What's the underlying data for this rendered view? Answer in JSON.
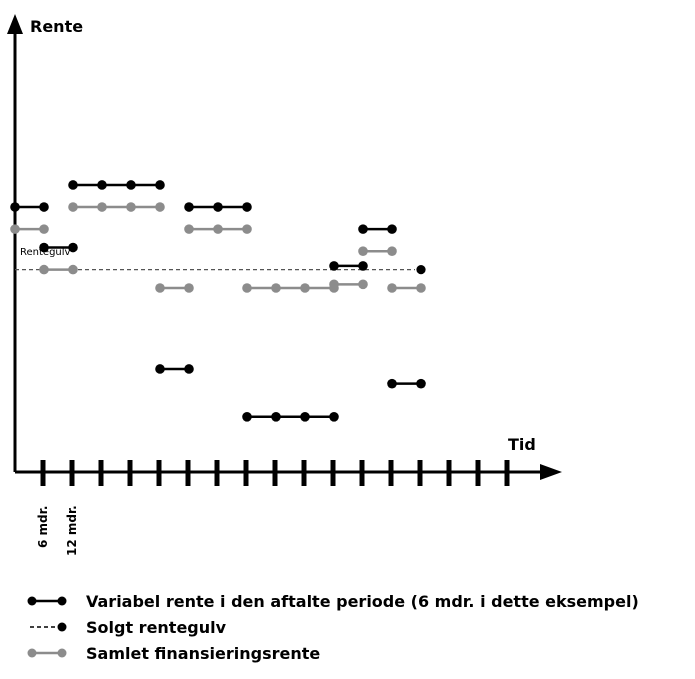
{
  "chart_data": {
    "type": "line",
    "ylabel": "Rente",
    "xlabel": "Tid",
    "floor_label": "Rentegulv",
    "tick_labels": [
      "6 mdr.",
      "12 mdr."
    ],
    "floor_value": 5.5,
    "series": [
      {
        "name": "Variabel rente i den aftalte periode (6 mdr. i dette eksempel)",
        "color": "#000000",
        "segments": [
          {
            "x": [
              0,
              1
            ],
            "y": 7.2
          },
          {
            "x": [
              1,
              2
            ],
            "y": 6.1
          },
          {
            "x": [
              2,
              3,
              4,
              5
            ],
            "y": 7.8
          },
          {
            "x": [
              5,
              6
            ],
            "y": 2.8
          },
          {
            "x": [
              6,
              7,
              8
            ],
            "y": 7.2
          },
          {
            "x": [
              8,
              9,
              10,
              11
            ],
            "y": 1.5
          },
          {
            "x": [
              11,
              12
            ],
            "y": 5.6
          },
          {
            "x": [
              12,
              13
            ],
            "y": 6.6
          },
          {
            "x": [
              13,
              14
            ],
            "y": 2.4
          }
        ]
      },
      {
        "name": "Solgt rentegulv",
        "color": "#000000",
        "dashed_line": {
          "x": [
            0,
            14
          ],
          "y": 5.5
        },
        "point": {
          "x": 14,
          "y": 5.5
        }
      },
      {
        "name": "Samlet finansieringsrente",
        "color": "#8c8c8c",
        "segments": [
          {
            "x": [
              0,
              1
            ],
            "y": 6.6
          },
          {
            "x": [
              1,
              2
            ],
            "y": 5.5
          },
          {
            "x": [
              2,
              3,
              4,
              5
            ],
            "y": 7.2
          },
          {
            "x": [
              5,
              6
            ],
            "y": 5.0
          },
          {
            "x": [
              6,
              7,
              8
            ],
            "y": 6.6
          },
          {
            "x": [
              8,
              9,
              10,
              11
            ],
            "y": 5.0
          },
          {
            "x": [
              11,
              12
            ],
            "y": 5.1
          },
          {
            "x": [
              12,
              13
            ],
            "y": 6.0
          },
          {
            "x": [
              13,
              14
            ],
            "y": 5.0
          }
        ]
      }
    ],
    "xlim": [
      0,
      17
    ],
    "ylim": [
      0,
      12
    ],
    "tick_count": 17
  },
  "legend": {
    "items": [
      {
        "label": "Variabel rente i den aftalte periode (6 mdr. i dette eksempel)",
        "style": "solid-two-dots",
        "color": "#000000"
      },
      {
        "label": "Solgt rentegulv",
        "style": "dashed-one-dot",
        "color": "#000000"
      },
      {
        "label": "Samlet finansieringsrente",
        "style": "solid-two-dots",
        "color": "#8c8c8c"
      }
    ]
  }
}
